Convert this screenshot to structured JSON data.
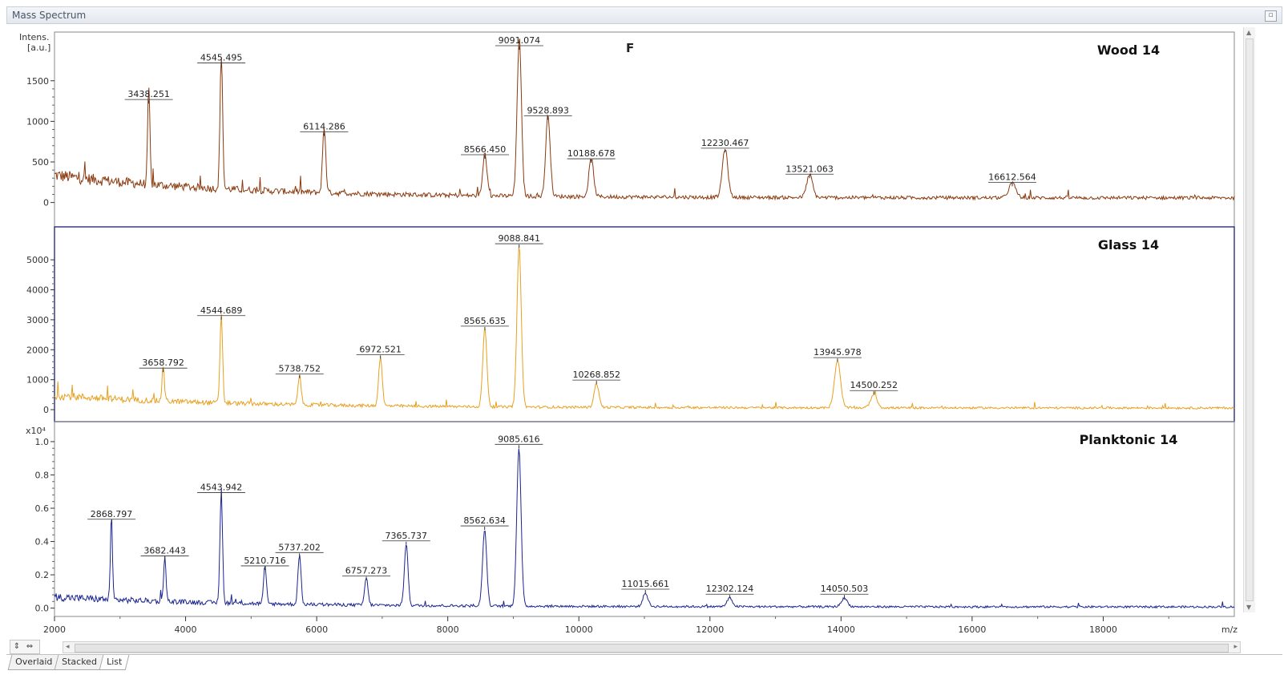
{
  "window": {
    "title": "Mass Spectrum"
  },
  "panel_letter": "F",
  "y_axis_unit": [
    "Intens.",
    "[a.u.]"
  ],
  "tabs": [
    "Overlaid",
    "Stacked",
    "List"
  ],
  "active_tab": "List",
  "colors": {
    "wood": "#8b3a0f",
    "glass": "#e8a020",
    "planktonic": "#1a2591",
    "frame": "#2a2f7a",
    "axis": "#333333"
  },
  "chart_data": [
    {
      "type": "line",
      "title": "Wood 14",
      "xlabel": "m/z",
      "ylabel": "Intens. [a.u.]",
      "xlim": [
        2000,
        20000
      ],
      "ylim": [
        -300,
        2100
      ],
      "yticks": [
        0,
        500,
        1000,
        1500
      ],
      "baseline": {
        "base": 280,
        "decay": 380,
        "noise": 120
      },
      "peaks": [
        {
          "x": 3438.251,
          "y": 1200,
          "label": "3438.251"
        },
        {
          "x": 4545.495,
          "y": 1650,
          "label": "4545.495"
        },
        {
          "x": 6114.286,
          "y": 800,
          "label": "6114.286"
        },
        {
          "x": 8566.45,
          "y": 520,
          "label": "8566.450"
        },
        {
          "x": 9091.074,
          "y": 1950,
          "label": "9091.074"
        },
        {
          "x": 9528.893,
          "y": 1000,
          "label": "9528.893"
        },
        {
          "x": 10188.678,
          "y": 470,
          "label": "10188.678"
        },
        {
          "x": 12230.467,
          "y": 600,
          "label": "12230.467"
        },
        {
          "x": 13521.063,
          "y": 280,
          "label": "13521.063"
        },
        {
          "x": 16612.564,
          "y": 180,
          "label": "16612.564"
        }
      ]
    },
    {
      "type": "line",
      "title": "Glass 14",
      "xlabel": "m/z",
      "ylabel": "Intens. [a.u.]",
      "xlim": [
        2000,
        20000
      ],
      "ylim": [
        -400,
        6100
      ],
      "yticks": [
        0,
        1000,
        2000,
        3000,
        4000,
        5000
      ],
      "baseline": {
        "base": 420,
        "decay": 380,
        "noise": 200
      },
      "peaks": [
        {
          "x": 3658.792,
          "y": 1200,
          "label": "3658.792"
        },
        {
          "x": 4544.689,
          "y": 2950,
          "label": "4544.689"
        },
        {
          "x": 5738.752,
          "y": 1000,
          "label": "5738.752"
        },
        {
          "x": 6972.521,
          "y": 1650,
          "label": "6972.521"
        },
        {
          "x": 8565.635,
          "y": 2600,
          "label": "8565.635"
        },
        {
          "x": 9088.841,
          "y": 5350,
          "label": "9088.841"
        },
        {
          "x": 10268.852,
          "y": 800,
          "label": "10268.852"
        },
        {
          "x": 13945.978,
          "y": 1550,
          "label": "13945.978"
        },
        {
          "x": 14500.252,
          "y": 450,
          "label": "14500.252"
        }
      ]
    },
    {
      "type": "line",
      "title": "Planktonic 14",
      "xlabel": "m/z",
      "ylabel": "Intens. [a.u.]",
      "y_scale_label": "x10⁴",
      "xlim": [
        2000,
        20000
      ],
      "ylim": [
        -0.05,
        1.12
      ],
      "yticks": [
        0.0,
        0.2,
        0.4,
        0.6,
        0.8,
        1.0
      ],
      "tick_decimals": 1,
      "baseline": {
        "base": 0.06,
        "decay": 0.05,
        "noise": 0.035
      },
      "peaks": [
        {
          "x": 2868.797,
          "y": 0.5,
          "label": "2868.797"
        },
        {
          "x": 3682.443,
          "y": 0.28,
          "label": "3682.443"
        },
        {
          "x": 4543.942,
          "y": 0.66,
          "label": "4543.942"
        },
        {
          "x": 5210.716,
          "y": 0.22,
          "label": "5210.716"
        },
        {
          "x": 5737.202,
          "y": 0.3,
          "label": "5737.202"
        },
        {
          "x": 6757.273,
          "y": 0.16,
          "label": "6757.273"
        },
        {
          "x": 7365.737,
          "y": 0.37,
          "label": "7365.737"
        },
        {
          "x": 8562.634,
          "y": 0.46,
          "label": "8562.634"
        },
        {
          "x": 9085.616,
          "y": 0.95,
          "label": "9085.616"
        },
        {
          "x": 11015.661,
          "y": 0.08,
          "label": "11015.661"
        },
        {
          "x": 12302.124,
          "y": 0.05,
          "label": "12302.124"
        },
        {
          "x": 14050.503,
          "y": 0.05,
          "label": "14050.503"
        }
      ]
    }
  ],
  "x_ticks": [
    2000,
    4000,
    6000,
    8000,
    10000,
    12000,
    14000,
    16000,
    18000
  ],
  "x_unit": "m/z"
}
